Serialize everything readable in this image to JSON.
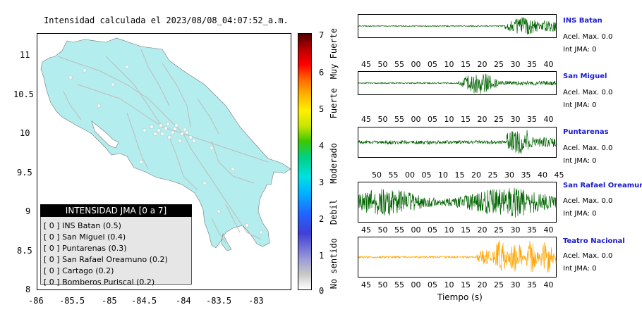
{
  "title": "Intensidad calculada el 2023/08/08_04:07:52_a.m.",
  "map": {
    "lat_ticks": [
      "11",
      "10.5",
      "10",
      "9.5",
      "9",
      "8.5",
      "8"
    ],
    "lon_ticks": [
      "-86",
      "-85.5",
      "-85",
      "-84.5",
      "-84",
      "-83.5",
      "-83"
    ],
    "land_color": "#b4eded",
    "roads_color": "#bdbdbd"
  },
  "legend": {
    "header": "INTENSIDAD JMA [0 a 7]",
    "rows": [
      {
        "badge": "[ 0 ]",
        "station": "INS Batan (0.5)"
      },
      {
        "badge": "[ 0 ]",
        "station": "San Miguel (0.4)"
      },
      {
        "badge": "[ 0 ]",
        "station": "Puntarenas (0.3)"
      },
      {
        "badge": "[ 0 ]",
        "station": "San Rafael Oreamuno (0.2)"
      },
      {
        "badge": "[ 0 ]",
        "station": "Cartago (0.2)"
      },
      {
        "badge": "[ 0 ]",
        "station": "Bomberos Puriscal (0.2)"
      }
    ]
  },
  "colorbar": {
    "ticks": [
      "7",
      "6",
      "5",
      "4",
      "3",
      "2",
      "1",
      "0"
    ],
    "words": [
      "Muy Fuerte",
      "Fuerte",
      "Moderado",
      "Debil",
      "No sentido"
    ]
  },
  "traces": [
    {
      "name": "INS Batan",
      "acel": "Acel. Max. 0.0",
      "jma": "Int JMA: 0",
      "color": "#006400",
      "ticks": [
        "45",
        "50",
        "55",
        "00",
        "05",
        "10",
        "15",
        "20",
        "25",
        "30",
        "35",
        "40"
      ]
    },
    {
      "name": "San Miguel",
      "acel": "Acel. Max. 0.0",
      "jma": "Int JMA: 0",
      "color": "#006400",
      "ticks": [
        "45",
        "50",
        "55",
        "00",
        "05",
        "10",
        "15",
        "20",
        "25",
        "30",
        "35",
        "40"
      ]
    },
    {
      "name": "Puntarenas",
      "acel": "Acel. Max. 0.0",
      "jma": "Int JMA: 0",
      "color": "#006400",
      "ticks": [
        "50",
        "55",
        "00",
        "05",
        "10",
        "15",
        "20",
        "25",
        "30",
        "35",
        "40",
        "45"
      ]
    },
    {
      "name": "San Rafael Oreamuno",
      "acel": "Acel. Max. 0.0",
      "jma": "Int JMA: 0",
      "color": "#006400",
      "ticks": [
        "45",
        "50",
        "55",
        "00",
        "05",
        "10",
        "15",
        "20",
        "25",
        "30",
        "35",
        "40"
      ]
    },
    {
      "name": "Teatro Nacional",
      "acel": "Acel. Max. 0.0",
      "jma": "Int JMA: 0",
      "color": "#ffa500",
      "ticks": [
        "45",
        "50",
        "55",
        "00",
        "05",
        "10",
        "15",
        "20",
        "25",
        "30",
        "35",
        "40"
      ]
    }
  ],
  "x_axis_title": "Tiempo (s)"
}
